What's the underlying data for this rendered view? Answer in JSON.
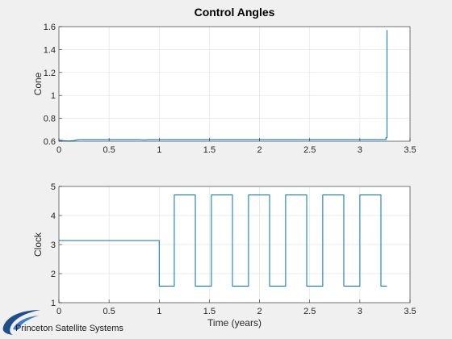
{
  "logo": {
    "text": "Princeton Satellite Systems"
  },
  "chart_data": [
    {
      "type": "line",
      "title": "Control Angles",
      "xlabel": "",
      "ylabel": "Cone",
      "xlim": [
        0,
        3.5
      ],
      "ylim": [
        0.6,
        1.6
      ],
      "xticks": [
        "0",
        "0.5",
        "1",
        "1.5",
        "2",
        "2.5",
        "3",
        "3.5"
      ],
      "yticks": [
        "0.6",
        "0.8",
        "1",
        "1.2",
        "1.4",
        "1.6"
      ],
      "grid": true,
      "color": "#0072bd",
      "series": [
        {
          "x": [
            0,
            0.05,
            0.1,
            0.15,
            0.18,
            0.2,
            0.3,
            0.8,
            0.85,
            0.9,
            1.5,
            2.0,
            2.5,
            3.0,
            3.26,
            3.26,
            3.27,
            3.27
          ],
          "y": [
            0.61,
            0.605,
            0.602,
            0.606,
            0.612,
            0.615,
            0.615,
            0.615,
            0.612,
            0.615,
            0.615,
            0.615,
            0.615,
            0.615,
            0.615,
            0.63,
            0.63,
            1.57
          ]
        }
      ]
    },
    {
      "type": "line",
      "title": "",
      "xlabel": "Time (years)",
      "ylabel": "Clock",
      "xlim": [
        0,
        3.5
      ],
      "ylim": [
        1,
        5
      ],
      "xticks": [
        "0",
        "0.5",
        "1",
        "1.5",
        "2",
        "2.5",
        "3",
        "3.5"
      ],
      "yticks": [
        "1",
        "2",
        "3",
        "4",
        "5"
      ],
      "grid": true,
      "color": "#0072bd",
      "series": [
        {
          "x": [
            0,
            1.0,
            1.0,
            1.15,
            1.15,
            1.36,
            1.36,
            1.52,
            1.52,
            1.73,
            1.73,
            1.89,
            1.89,
            2.1,
            2.1,
            2.26,
            2.26,
            2.47,
            2.47,
            2.63,
            2.63,
            2.84,
            2.84,
            3.0,
            3.0,
            3.21,
            3.21,
            3.27
          ],
          "y": [
            3.14,
            3.14,
            1.57,
            1.57,
            4.71,
            4.71,
            1.57,
            1.57,
            4.71,
            4.71,
            1.57,
            1.57,
            4.71,
            4.71,
            1.57,
            1.57,
            4.71,
            4.71,
            1.57,
            1.57,
            4.71,
            4.71,
            1.57,
            1.57,
            4.71,
            4.71,
            1.57,
            1.57
          ]
        }
      ]
    }
  ]
}
